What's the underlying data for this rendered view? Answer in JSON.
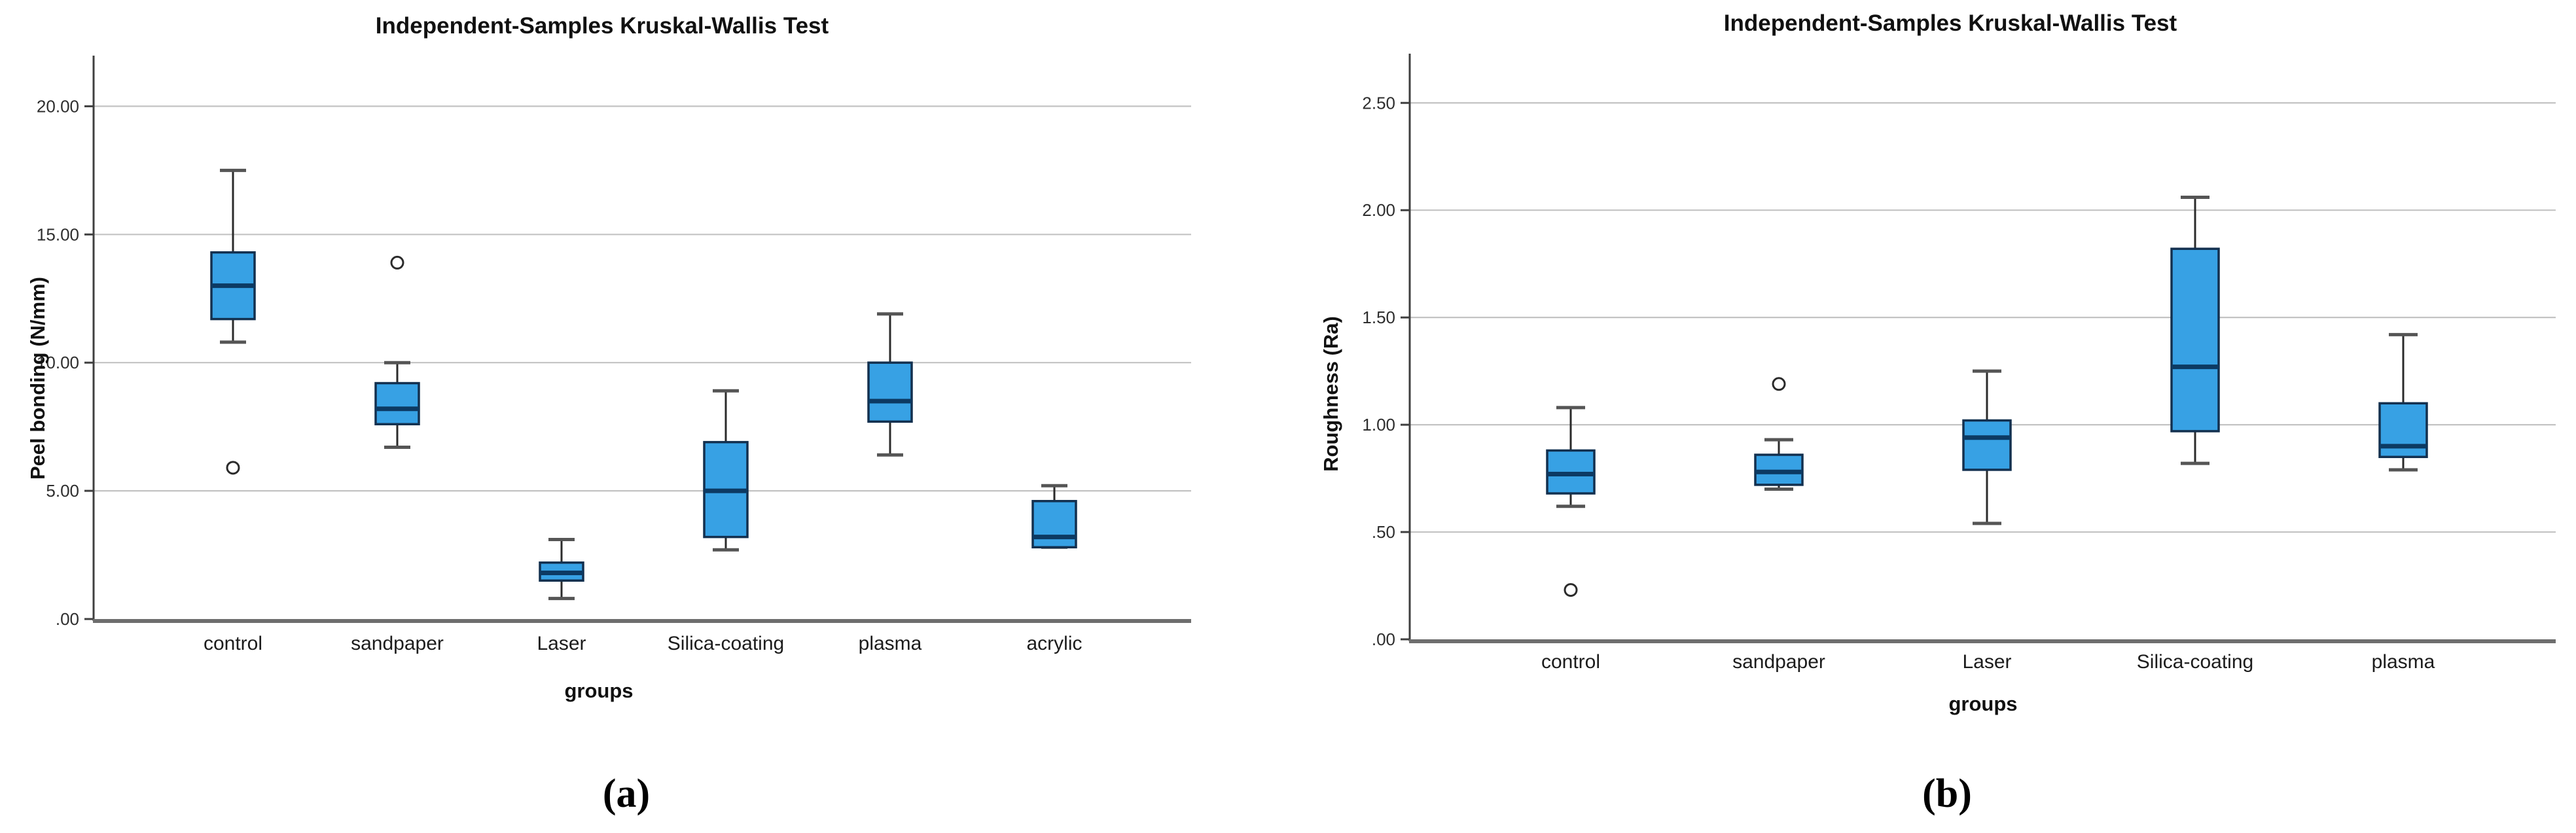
{
  "page": {
    "background": "#ffffff"
  },
  "chart_data": [
    {
      "type": "boxplot",
      "title": "Independent-Samples Kruskal-Wallis Test",
      "caption": "(a)",
      "xlabel": "groups",
      "ylabel": "Peel bonding  (N/mm)",
      "categories": [
        "control",
        "sandpaper",
        "Laser",
        "Silica-coating",
        "plasma",
        "acrylic"
      ],
      "ylim": [
        0,
        21.9
      ],
      "yticks": [
        0,
        5,
        10,
        15,
        20
      ],
      "ytick_labels": [
        ".00",
        "5.00",
        "10.00",
        "15.00",
        "20.00"
      ],
      "grid": true,
      "legend": "none",
      "boxes": [
        {
          "category": "control",
          "whisker_low": 10.8,
          "q1": 11.7,
          "median": 13.0,
          "q3": 14.3,
          "whisker_high": 17.5,
          "outliers": [
            5.9
          ]
        },
        {
          "category": "sandpaper",
          "whisker_low": 6.7,
          "q1": 7.6,
          "median": 8.2,
          "q3": 9.2,
          "whisker_high": 10.0,
          "outliers": [
            13.9
          ]
        },
        {
          "category": "Laser",
          "whisker_low": 0.8,
          "q1": 1.5,
          "median": 1.8,
          "q3": 2.2,
          "whisker_high": 3.1,
          "outliers": []
        },
        {
          "category": "Silica-coating",
          "whisker_low": 2.7,
          "q1": 3.2,
          "median": 5.0,
          "q3": 6.9,
          "whisker_high": 8.9,
          "outliers": []
        },
        {
          "category": "plasma",
          "whisker_low": 6.4,
          "q1": 7.7,
          "median": 8.5,
          "q3": 10.0,
          "whisker_high": 11.9,
          "outliers": []
        },
        {
          "category": "acrylic",
          "whisker_low": 2.8,
          "q1": 2.8,
          "median": 3.2,
          "q3": 4.6,
          "whisker_high": 5.2,
          "outliers": []
        }
      ],
      "colors": {
        "box_fill": "#37a1e4",
        "box_border": "#13304f",
        "median": "#0c3a63",
        "whisker": "#2b2b2b",
        "cap": "#555555",
        "grid": "#c3c3c3",
        "axis": "#3f3f3f",
        "baseline": "#6e6e6e",
        "outlier": "#2b2b2b"
      }
    },
    {
      "type": "boxplot",
      "title": "Independent-Samples Kruskal-Wallis Test",
      "caption": "(b)",
      "xlabel": "groups",
      "ylabel": "Roughness (Ra)",
      "categories": [
        "control",
        "sandpaper",
        "Laser",
        "Silica-coating",
        "plasma"
      ],
      "ylim": [
        0,
        2.72
      ],
      "yticks": [
        0,
        0.5,
        1.0,
        1.5,
        2.0,
        2.5
      ],
      "ytick_labels": [
        ".00",
        ".50",
        "1.00",
        "1.50",
        "2.00",
        "2.50"
      ],
      "grid": true,
      "legend": "none",
      "boxes": [
        {
          "category": "control",
          "whisker_low": 0.62,
          "q1": 0.68,
          "median": 0.77,
          "q3": 0.88,
          "whisker_high": 1.08,
          "outliers": [
            0.23
          ]
        },
        {
          "category": "sandpaper",
          "whisker_low": 0.7,
          "q1": 0.72,
          "median": 0.78,
          "q3": 0.86,
          "whisker_high": 0.93,
          "outliers": [
            1.19
          ]
        },
        {
          "category": "Laser",
          "whisker_low": 0.54,
          "q1": 0.79,
          "median": 0.94,
          "q3": 1.02,
          "whisker_high": 1.25,
          "outliers": []
        },
        {
          "category": "Silica-coating",
          "whisker_low": 0.82,
          "q1": 0.97,
          "median": 1.27,
          "q3": 1.82,
          "whisker_high": 2.06,
          "outliers": []
        },
        {
          "category": "plasma",
          "whisker_low": 0.79,
          "q1": 0.85,
          "median": 0.9,
          "q3": 1.1,
          "whisker_high": 1.42,
          "outliers": []
        }
      ],
      "colors": {
        "box_fill": "#37a1e4",
        "box_border": "#13304f",
        "median": "#0c3a63",
        "whisker": "#2b2b2b",
        "cap": "#555555",
        "grid": "#c3c3c3",
        "axis": "#3f3f3f",
        "baseline": "#6e6e6e",
        "outlier": "#2b2b2b"
      }
    }
  ]
}
